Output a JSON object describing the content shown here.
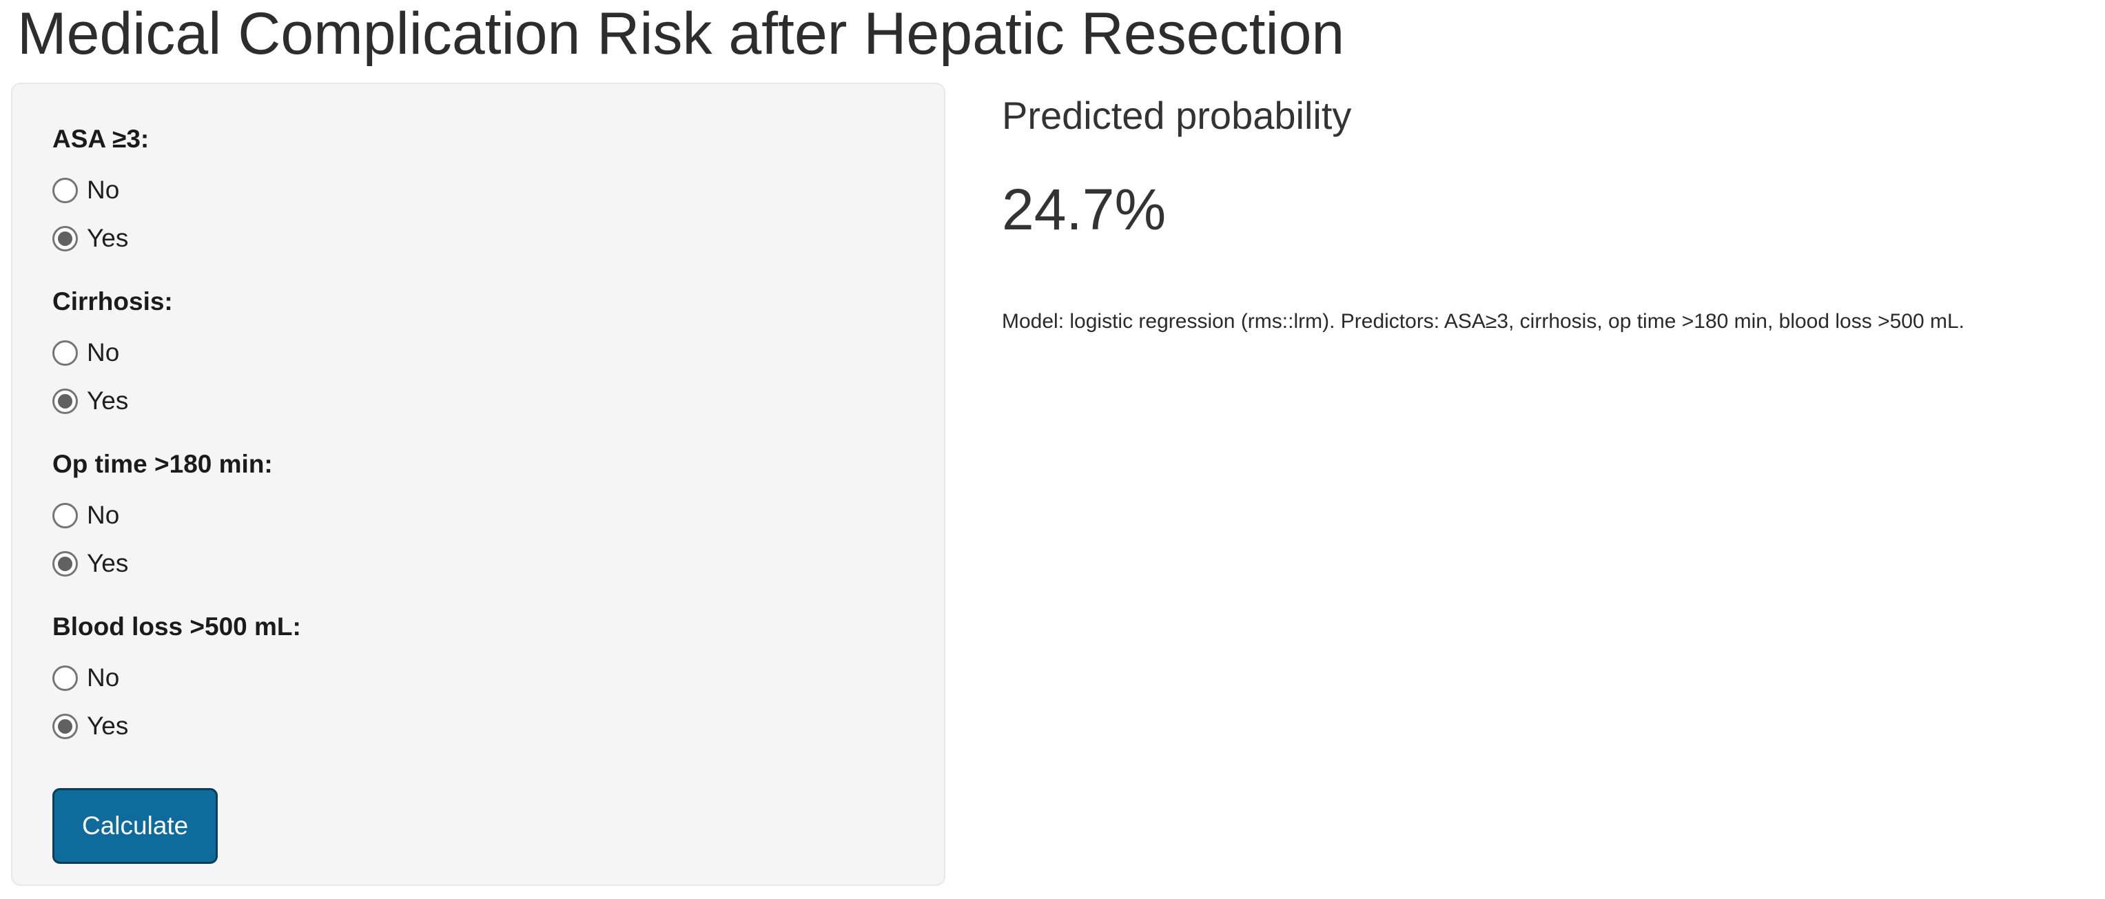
{
  "title": "Medical Complication Risk after Hepatic Resection",
  "colors": {
    "panel_bg": "#f5f5f5",
    "panel_border": "#e7e7e7",
    "button_bg": "#0f6b9c",
    "button_border": "#0b3c58",
    "radio_ring": "#757575",
    "radio_dot": "#616161"
  },
  "form": {
    "groups": [
      {
        "id": "asa",
        "label": "ASA ≥3:",
        "options": [
          "No",
          "Yes"
        ],
        "selected": "Yes"
      },
      {
        "id": "cirrhosis",
        "label": "Cirrhosis:",
        "options": [
          "No",
          "Yes"
        ],
        "selected": "Yes"
      },
      {
        "id": "optime",
        "label": "Op time >180 min:",
        "options": [
          "No",
          "Yes"
        ],
        "selected": "Yes"
      },
      {
        "id": "bloodloss",
        "label": "Blood loss >500 mL:",
        "options": [
          "No",
          "Yes"
        ],
        "selected": "Yes"
      }
    ],
    "submit_label": "Calculate"
  },
  "result": {
    "heading": "Predicted probability",
    "value": "24.7%",
    "model_note": "Model: logistic regression (rms::lrm). Predictors: ASA≥3, cirrhosis, op time >180 min, blood loss >500 mL."
  }
}
